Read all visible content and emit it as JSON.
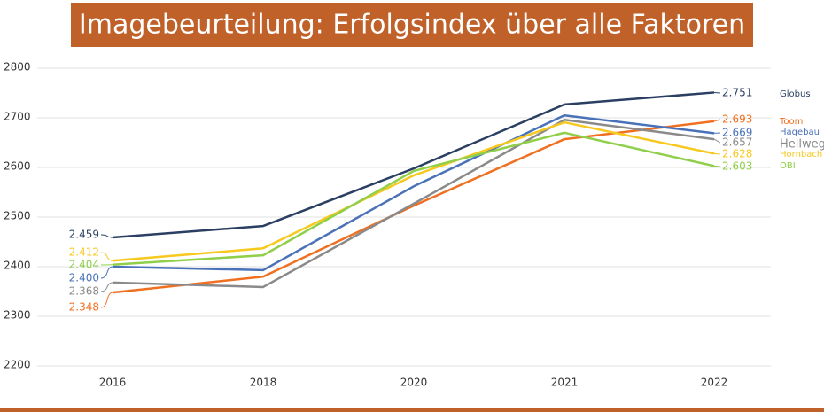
{
  "chart_data": {
    "type": "line",
    "title": "Imagebeurteilung: Erfolgsindex über alle Faktoren",
    "categories": [
      "2016",
      "2018",
      "2020",
      "2021",
      "2022"
    ],
    "ylim": [
      2200,
      2800
    ],
    "yticks": [
      2200,
      2300,
      2400,
      2500,
      2600,
      2700,
      2800
    ],
    "grid": true,
    "series": [
      {
        "name": "Globus",
        "color": "#2b3f63",
        "values": [
          2459,
          2482,
          2598,
          2727,
          2751
        ],
        "value_labels": [
          "2.459",
          null,
          null,
          null,
          "2.751"
        ]
      },
      {
        "name": "Toom",
        "color": "#f07022",
        "values": [
          2348,
          2380,
          2523,
          2657,
          2693
        ],
        "value_labels": [
          "2.348",
          null,
          null,
          null,
          "2.693"
        ]
      },
      {
        "name": "Hagebau",
        "color": "#4a72b8",
        "values": [
          2400,
          2393,
          2562,
          2705,
          2669
        ],
        "value_labels": [
          "2.400",
          null,
          null,
          null,
          "2.669"
        ]
      },
      {
        "name": "Hellweg",
        "color": "#8a8a8a",
        "values": [
          2368,
          2359,
          2527,
          2696,
          2657
        ],
        "value_labels": [
          "2.368",
          null,
          null,
          null,
          "2.657"
        ]
      },
      {
        "name": "Hornbach",
        "color": "#f7c81e",
        "values": [
          2412,
          2437,
          2584,
          2691,
          2628
        ],
        "value_labels": [
          "2.412",
          null,
          null,
          null,
          "2.628"
        ]
      },
      {
        "name": "OBI",
        "color": "#8fcf4a",
        "values": [
          2404,
          2423,
          2593,
          2670,
          2603
        ],
        "value_labels": [
          "2.404",
          null,
          null,
          null,
          "2.603"
        ]
      }
    ]
  }
}
